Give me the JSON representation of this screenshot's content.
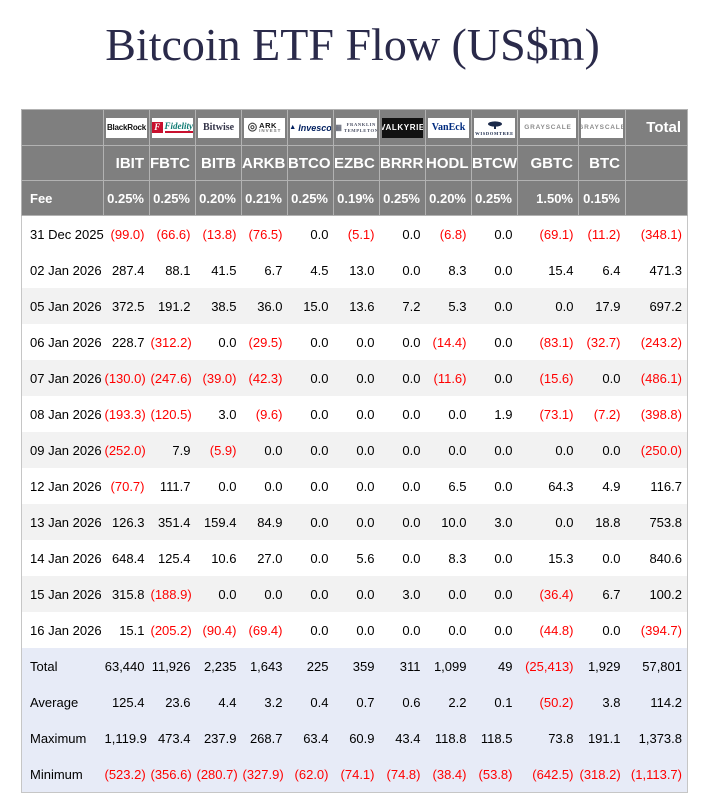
{
  "title": "Bitcoin ETF Flow (US$m)",
  "colors": {
    "title_text": "#2a2a4a",
    "header_bg": "#7f7f7f",
    "header_text": "#ffffff",
    "negative_value": "#ff0000",
    "shaded_row_bg": "#f2f2f2",
    "summary_row_bg": "#e7ebf7"
  },
  "chart_data": {
    "type": "table",
    "title": "Bitcoin ETF Flow (US$m)",
    "fee_label": "Fee",
    "total_label": "Total",
    "providers": [
      {
        "id": "blackrock",
        "name": "BlackRock"
      },
      {
        "id": "fidelity",
        "name": "Fidelity"
      },
      {
        "id": "bitwise",
        "name": "Bitwise"
      },
      {
        "id": "ark",
        "name": "ARK",
        "sub": "INVEST"
      },
      {
        "id": "invesco",
        "name": "Invesco"
      },
      {
        "id": "franklin",
        "name": "FRANKLIN",
        "sub": "TEMPLETON"
      },
      {
        "id": "valkyrie",
        "name": "VALKYRIE"
      },
      {
        "id": "vaneck",
        "name": "VanEck"
      },
      {
        "id": "wisdomtree",
        "name": "WISDOMTREE"
      },
      {
        "id": "grayscale",
        "name": "GRAYSCALE"
      },
      {
        "id": "grayscale",
        "name": "GRAYSCALE"
      }
    ],
    "tickers": [
      "IBIT",
      "FBTC",
      "BITB",
      "ARKB",
      "BTCO",
      "EZBC",
      "BRRR",
      "HODL",
      "BTCW",
      "GBTC",
      "BTC"
    ],
    "fees": [
      "0.25%",
      "0.25%",
      "0.20%",
      "0.21%",
      "0.25%",
      "0.19%",
      "0.25%",
      "0.20%",
      "0.25%",
      "1.50%",
      "0.15%"
    ],
    "rows": [
      {
        "date": "31 Dec 2025",
        "values": [
          "(99.0)",
          "(66.6)",
          "(13.8)",
          "(76.5)",
          "0.0",
          "(5.1)",
          "0.0",
          "(6.8)",
          "0.0",
          "(69.1)",
          "(11.2)",
          "(348.1)"
        ]
      },
      {
        "date": "02 Jan 2026",
        "values": [
          "287.4",
          "88.1",
          "41.5",
          "6.7",
          "4.5",
          "13.0",
          "0.0",
          "8.3",
          "0.0",
          "15.4",
          "6.4",
          "471.3"
        ]
      },
      {
        "date": "05 Jan 2026",
        "values": [
          "372.5",
          "191.2",
          "38.5",
          "36.0",
          "15.0",
          "13.6",
          "7.2",
          "5.3",
          "0.0",
          "0.0",
          "17.9",
          "697.2"
        ]
      },
      {
        "date": "06 Jan 2026",
        "values": [
          "228.7",
          "(312.2)",
          "0.0",
          "(29.5)",
          "0.0",
          "0.0",
          "0.0",
          "(14.4)",
          "0.0",
          "(83.1)",
          "(32.7)",
          "(243.2)"
        ]
      },
      {
        "date": "07 Jan 2026",
        "values": [
          "(130.0)",
          "(247.6)",
          "(39.0)",
          "(42.3)",
          "0.0",
          "0.0",
          "0.0",
          "(11.6)",
          "0.0",
          "(15.6)",
          "0.0",
          "(486.1)"
        ]
      },
      {
        "date": "08 Jan 2026",
        "values": [
          "(193.3)",
          "(120.5)",
          "3.0",
          "(9.6)",
          "0.0",
          "0.0",
          "0.0",
          "0.0",
          "1.9",
          "(73.1)",
          "(7.2)",
          "(398.8)"
        ]
      },
      {
        "date": "09 Jan 2026",
        "values": [
          "(252.0)",
          "7.9",
          "(5.9)",
          "0.0",
          "0.0",
          "0.0",
          "0.0",
          "0.0",
          "0.0",
          "0.0",
          "0.0",
          "(250.0)"
        ]
      },
      {
        "date": "12 Jan 2026",
        "values": [
          "(70.7)",
          "111.7",
          "0.0",
          "0.0",
          "0.0",
          "0.0",
          "0.0",
          "6.5",
          "0.0",
          "64.3",
          "4.9",
          "116.7"
        ]
      },
      {
        "date": "13 Jan 2026",
        "values": [
          "126.3",
          "351.4",
          "159.4",
          "84.9",
          "0.0",
          "0.0",
          "0.0",
          "10.0",
          "3.0",
          "0.0",
          "18.8",
          "753.8"
        ]
      },
      {
        "date": "14 Jan 2026",
        "values": [
          "648.4",
          "125.4",
          "10.6",
          "27.0",
          "0.0",
          "5.6",
          "0.0",
          "8.3",
          "0.0",
          "15.3",
          "0.0",
          "840.6"
        ]
      },
      {
        "date": "15 Jan 2026",
        "values": [
          "315.8",
          "(188.9)",
          "0.0",
          "0.0",
          "0.0",
          "0.0",
          "3.0",
          "0.0",
          "0.0",
          "(36.4)",
          "6.7",
          "100.2"
        ]
      },
      {
        "date": "16 Jan 2026",
        "values": [
          "15.1",
          "(205.2)",
          "(90.4)",
          "(69.4)",
          "0.0",
          "0.0",
          "0.0",
          "0.0",
          "0.0",
          "(44.8)",
          "0.0",
          "(394.7)"
        ]
      }
    ],
    "summary": [
      {
        "label": "Total",
        "values": [
          "63,440",
          "11,926",
          "2,235",
          "1,643",
          "225",
          "359",
          "311",
          "1,099",
          "49",
          "(25,413)",
          "1,929",
          "57,801"
        ]
      },
      {
        "label": "Average",
        "values": [
          "125.4",
          "23.6",
          "4.4",
          "3.2",
          "0.4",
          "0.7",
          "0.6",
          "2.2",
          "0.1",
          "(50.2)",
          "3.8",
          "114.2"
        ]
      },
      {
        "label": "Maximum",
        "values": [
          "1,119.9",
          "473.4",
          "237.9",
          "268.7",
          "63.4",
          "60.9",
          "43.4",
          "118.8",
          "118.5",
          "73.8",
          "191.1",
          "1,373.8"
        ]
      },
      {
        "label": "Minimum",
        "values": [
          "(523.2)",
          "(356.6)",
          "(280.7)",
          "(327.9)",
          "(62.0)",
          "(74.1)",
          "(74.8)",
          "(38.4)",
          "(53.8)",
          "(642.5)",
          "(318.2)",
          "(1,113.7)"
        ]
      }
    ]
  }
}
